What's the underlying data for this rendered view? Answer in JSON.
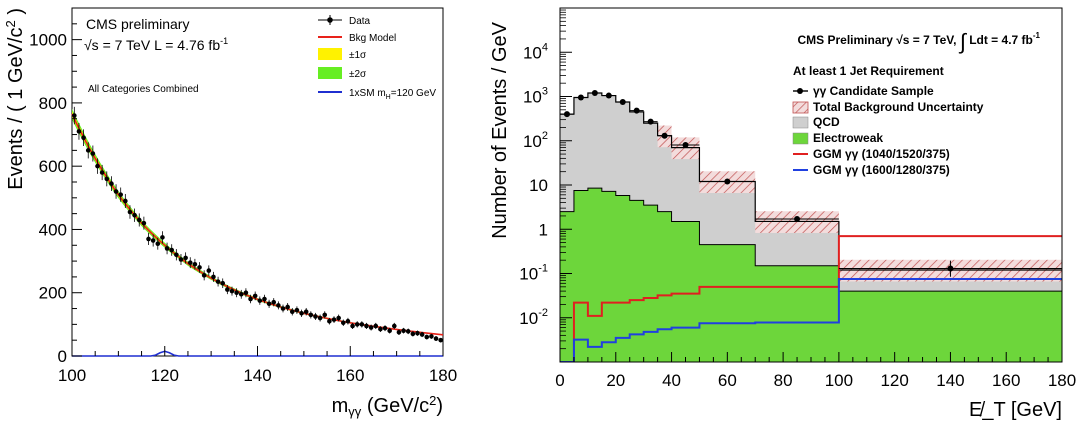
{
  "chart_data": [
    {
      "type": "scatter",
      "annotations": [
        "CMS preliminary",
        "√s = 7 TeV L = 4.76 fb⁻¹",
        "All Categories Combined"
      ],
      "xlabel": "m_γγ (GeV/c²)",
      "ylabel": "Events / ( 1 GeV/c² )",
      "xlim": [
        100,
        180
      ],
      "ylim": [
        0,
        1100
      ],
      "xticks": [
        100,
        120,
        140,
        160,
        180
      ],
      "yticks": [
        0,
        200,
        400,
        600,
        800,
        1000
      ],
      "grid": false,
      "legend_position": "top-right",
      "legend": [
        {
          "label": "Data",
          "kind": "marker",
          "color": "#000000"
        },
        {
          "label": "Bkg Model",
          "kind": "line",
          "color": "#e8221a"
        },
        {
          "label": "±1σ",
          "kind": "box",
          "color": "#fff200"
        },
        {
          "label": "±2σ",
          "kind": "box",
          "color": "#66ee22"
        },
        {
          "label": "1xSM m_H=120 GeV",
          "kind": "line",
          "color": "#1f2fd0"
        }
      ],
      "series": [
        {
          "name": "Data",
          "x": [
            100.5,
            101.5,
            102.5,
            103.5,
            104.5,
            105.5,
            106.5,
            107.5,
            108.5,
            109.5,
            110.5,
            111.5,
            112.5,
            113.5,
            114.5,
            115.5,
            116.5,
            117.5,
            118.5,
            119.5,
            120.5,
            121.5,
            122.5,
            123.5,
            124.5,
            125.5,
            126.5,
            127.5,
            128.5,
            129.5,
            130.5,
            131.5,
            132.5,
            133.5,
            134.5,
            135.5,
            136.5,
            137.5,
            138.5,
            139.5,
            140.5,
            141.5,
            142.5,
            143.5,
            144.5,
            145.5,
            146.5,
            147.5,
            148.5,
            149.5,
            150.5,
            151.5,
            152.5,
            153.5,
            154.5,
            155.5,
            156.5,
            157.5,
            158.5,
            159.5,
            160.5,
            161.5,
            162.5,
            163.5,
            164.5,
            165.5,
            166.5,
            167.5,
            168.5,
            169.5,
            170.5,
            171.5,
            172.5,
            173.5,
            174.5,
            175.5,
            176.5,
            177.5,
            178.5,
            179.5
          ],
          "y": [
            760,
            710,
            690,
            650,
            640,
            600,
            580,
            560,
            545,
            520,
            510,
            490,
            455,
            445,
            430,
            420,
            370,
            365,
            355,
            375,
            340,
            335,
            320,
            305,
            310,
            295,
            290,
            280,
            255,
            270,
            250,
            235,
            230,
            210,
            205,
            200,
            195,
            200,
            180,
            190,
            175,
            180,
            165,
            170,
            160,
            150,
            155,
            140,
            145,
            135,
            140,
            130,
            125,
            120,
            130,
            110,
            115,
            120,
            105,
            110,
            95,
            100,
            100,
            95,
            90,
            95,
            85,
            88,
            80,
            95,
            75,
            80,
            78,
            70,
            72,
            68,
            60,
            62,
            55,
            50
          ]
        },
        {
          "name": "Bkg Model",
          "x": [
            100,
            105,
            110,
            115,
            120,
            125,
            130,
            135,
            140,
            145,
            150,
            155,
            160,
            165,
            170,
            175,
            180
          ],
          "y": [
            765,
            625,
            510,
            420,
            350,
            292,
            246,
            209,
            179,
            155,
            135,
            119,
            105,
            94,
            84,
            75,
            67
          ]
        },
        {
          "name": "1xSM m_H=120 GeV",
          "x": [
            100,
            117,
            118,
            119,
            120,
            121,
            122,
            123,
            180
          ],
          "y": [
            0,
            0,
            3,
            10,
            15,
            10,
            3,
            0,
            0
          ]
        }
      ]
    },
    {
      "type": "bar",
      "annotations": [
        "CMS Preliminary  √s = 7 TeV,  ∫Ldt = 4.7 fb⁻¹",
        "At least 1 Jet Requirement"
      ],
      "xlabel": "E̸_T [GeV]",
      "ylabel": "Number of Events / GeV",
      "yscale": "log",
      "xlim": [
        0,
        180
      ],
      "ylim": [
        0.001,
        100000
      ],
      "xticks": [
        0,
        20,
        40,
        60,
        80,
        100,
        120,
        140,
        160,
        180
      ],
      "yticks": [
        {
          "value": 0.01,
          "base": "10",
          "exp": "-2"
        },
        {
          "value": 0.1,
          "base": "10",
          "exp": "-1"
        },
        {
          "value": 1,
          "base": "1",
          "exp": ""
        },
        {
          "value": 10,
          "base": "10",
          "exp": ""
        },
        {
          "value": 100,
          "base": "10",
          "exp": "2"
        },
        {
          "value": 1000,
          "base": "10",
          "exp": "3"
        },
        {
          "value": 10000,
          "base": "10",
          "exp": "4"
        }
      ],
      "grid": false,
      "legend_position": "top-right",
      "legend": [
        {
          "label": "γγ Candidate Sample",
          "kind": "marker",
          "color": "#000000"
        },
        {
          "label": "Total Background Uncertainty",
          "kind": "hatch",
          "color": "#c05050"
        },
        {
          "label": "QCD",
          "kind": "box",
          "color": "#cfcfcf"
        },
        {
          "label": "Electroweak",
          "kind": "box",
          "color": "#6dd63b"
        },
        {
          "label": "GGM γγ (1040/1520/375)",
          "kind": "line",
          "color": "#e02020"
        },
        {
          "label": "GGM γγ (1600/1280/375)",
          "kind": "line",
          "color": "#2040e0"
        }
      ],
      "bin_edges": [
        0,
        5,
        10,
        15,
        20,
        25,
        30,
        35,
        40,
        50,
        70,
        100,
        180
      ],
      "total_background": [
        400,
        950,
        1200,
        1050,
        750,
        450,
        250,
        130,
        70,
        12,
        1.5,
        0.12
      ],
      "electroweak": [
        2.5,
        7.5,
        8.5,
        7.2,
        5.8,
        4.5,
        3.5,
        2.5,
        1.5,
        0.45,
        0.15,
        0.04
      ],
      "ggm_red": [
        0.001,
        0.022,
        0.011,
        0.022,
        0.022,
        0.025,
        0.028,
        0.032,
        0.035,
        0.05,
        0.05,
        0.7
      ],
      "ggm_blue": [
        0.001,
        0.0032,
        0.0022,
        0.0028,
        0.0035,
        0.0042,
        0.0048,
        0.0055,
        0.006,
        0.0075,
        0.0078,
        0.075
      ],
      "series": [
        {
          "name": "γγ Candidate Sample",
          "x": [
            2.5,
            7.5,
            12.5,
            17.5,
            22.5,
            27.5,
            32.5,
            37.5,
            45,
            60,
            85,
            140
          ],
          "y": [
            400,
            950,
            1200,
            1050,
            750,
            480,
            270,
            130,
            80,
            12,
            1.7,
            0.13
          ]
        }
      ]
    }
  ]
}
